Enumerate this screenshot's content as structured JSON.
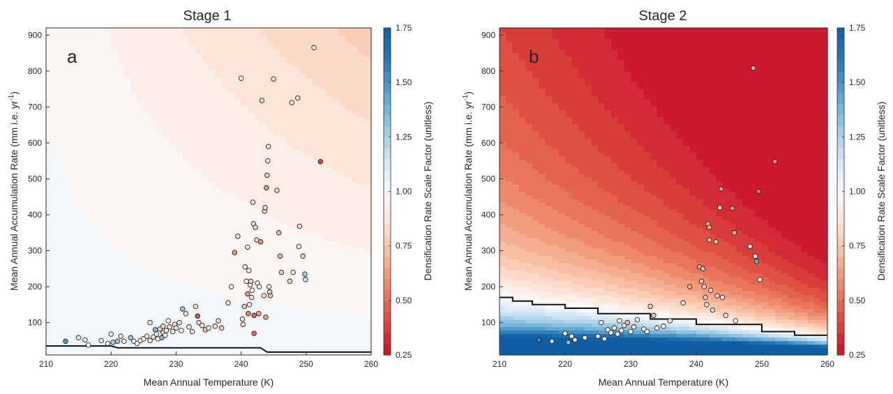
{
  "chart_data": [
    {
      "type": "heatmap",
      "panel": "a",
      "title": "Stage 1",
      "xlabel": "Mean Annual Temperature (K)",
      "ylabel": "Mean Annual Accumulation Rate (mm i.e. yr",
      "ylabel_sup": "-1",
      "ylabel_close": ")",
      "xlim": [
        210,
        260
      ],
      "ylim": [
        10,
        920
      ],
      "xticks": [
        210,
        220,
        230,
        240,
        250,
        260
      ],
      "yticks": [
        100,
        200,
        300,
        400,
        500,
        600,
        700,
        800,
        900
      ],
      "colorbar": {
        "label": "Densification Rate Scale Factor (unitless)",
        "range": [
          0.25,
          1.75
        ],
        "ticks": [
          "0.25",
          "0.50",
          "0.75",
          "1.00",
          "1.25",
          "1.50",
          "1.75"
        ]
      },
      "background_field": {
        "model": "s = 1 - k*(T-210)*(a-a0)",
        "k": 4.8e-06,
        "a0": 30
      },
      "boundary_line": {
        "x": [
          210,
          220,
          221,
          243,
          244,
          260
        ],
        "y": [
          35,
          35,
          30,
          30,
          18,
          18
        ],
        "label_value": 1.0
      },
      "points": [
        {
          "x": 213,
          "y": 48,
          "v": 1.5
        },
        {
          "x": 215,
          "y": 58,
          "v": 1.1
        },
        {
          "x": 216,
          "y": 52,
          "v": 1.05
        },
        {
          "x": 216.5,
          "y": 38,
          "v": 1.0
        },
        {
          "x": 218.5,
          "y": 50,
          "v": 0.95
        },
        {
          "x": 219.5,
          "y": 42,
          "v": 1.0
        },
        {
          "x": 220,
          "y": 68,
          "v": 0.9
        },
        {
          "x": 220.3,
          "y": 45,
          "v": 1.25
        },
        {
          "x": 221,
          "y": 48,
          "v": 1.3
        },
        {
          "x": 221.5,
          "y": 62,
          "v": 0.85
        },
        {
          "x": 222,
          "y": 48,
          "v": 1.0
        },
        {
          "x": 223,
          "y": 58,
          "v": 1.3
        },
        {
          "x": 223.5,
          "y": 48,
          "v": 0.95
        },
        {
          "x": 224,
          "y": 42,
          "v": 1.0
        },
        {
          "x": 224.5,
          "y": 50,
          "v": 0.9
        },
        {
          "x": 225,
          "y": 55,
          "v": 1.0
        },
        {
          "x": 225.5,
          "y": 62,
          "v": 0.85
        },
        {
          "x": 226,
          "y": 100,
          "v": 0.85
        },
        {
          "x": 226,
          "y": 50,
          "v": 0.95
        },
        {
          "x": 226.5,
          "y": 60,
          "v": 0.9
        },
        {
          "x": 226.8,
          "y": 80,
          "v": 1.35
        },
        {
          "x": 227,
          "y": 68,
          "v": 0.95
        },
        {
          "x": 227.2,
          "y": 55,
          "v": 1.0
        },
        {
          "x": 227.5,
          "y": 82,
          "v": 0.8
        },
        {
          "x": 227.8,
          "y": 58,
          "v": 1.35
        },
        {
          "x": 228,
          "y": 72,
          "v": 0.9
        },
        {
          "x": 228,
          "y": 90,
          "v": 0.8
        },
        {
          "x": 228.3,
          "y": 65,
          "v": 0.95
        },
        {
          "x": 228.5,
          "y": 78,
          "v": 0.9
        },
        {
          "x": 228.8,
          "y": 105,
          "v": 1.0
        },
        {
          "x": 229,
          "y": 88,
          "v": 0.85
        },
        {
          "x": 229.5,
          "y": 75,
          "v": 0.95
        },
        {
          "x": 229.8,
          "y": 95,
          "v": 0.9
        },
        {
          "x": 230,
          "y": 85,
          "v": 0.85
        },
        {
          "x": 230.5,
          "y": 100,
          "v": 0.9
        },
        {
          "x": 230.8,
          "y": 78,
          "v": 1.0
        },
        {
          "x": 231,
          "y": 138,
          "v": 1.3
        },
        {
          "x": 231.5,
          "y": 125,
          "v": 0.85
        },
        {
          "x": 232,
          "y": 88,
          "v": 0.95
        },
        {
          "x": 232.5,
          "y": 75,
          "v": 0.85
        },
        {
          "x": 233,
          "y": 145,
          "v": 0.85
        },
        {
          "x": 233.3,
          "y": 118,
          "v": 0.4
        },
        {
          "x": 233.5,
          "y": 100,
          "v": 0.8
        },
        {
          "x": 234,
          "y": 92,
          "v": 0.85
        },
        {
          "x": 234.5,
          "y": 80,
          "v": 0.75
        },
        {
          "x": 235,
          "y": 85,
          "v": 0.9
        },
        {
          "x": 236,
          "y": 90,
          "v": 0.85
        },
        {
          "x": 236.5,
          "y": 105,
          "v": 0.8
        },
        {
          "x": 237,
          "y": 85,
          "v": 0.75
        },
        {
          "x": 238,
          "y": 155,
          "v": 0.85
        },
        {
          "x": 238.5,
          "y": 200,
          "v": 0.9
        },
        {
          "x": 239,
          "y": 295,
          "v": 0.6
        },
        {
          "x": 239.5,
          "y": 340,
          "v": 1.15
        },
        {
          "x": 240,
          "y": 780,
          "v": 1.0
        },
        {
          "x": 240.2,
          "y": 110,
          "v": 0.85
        },
        {
          "x": 240.3,
          "y": 95,
          "v": 0.9
        },
        {
          "x": 240.5,
          "y": 145,
          "v": 0.75
        },
        {
          "x": 240.6,
          "y": 255,
          "v": 0.85
        },
        {
          "x": 240.8,
          "y": 215,
          "v": 1.0
        },
        {
          "x": 241,
          "y": 310,
          "v": 1.05
        },
        {
          "x": 241,
          "y": 180,
          "v": 0.6
        },
        {
          "x": 241.1,
          "y": 125,
          "v": 0.55
        },
        {
          "x": 241.2,
          "y": 245,
          "v": 0.95
        },
        {
          "x": 241.3,
          "y": 150,
          "v": 0.95
        },
        {
          "x": 241.4,
          "y": 205,
          "v": 0.85
        },
        {
          "x": 241.5,
          "y": 215,
          "v": 0.8
        },
        {
          "x": 241.6,
          "y": 170,
          "v": 0.9
        },
        {
          "x": 241.7,
          "y": 190,
          "v": 0.95
        },
        {
          "x": 241.8,
          "y": 435,
          "v": 0.85
        },
        {
          "x": 241.9,
          "y": 375,
          "v": 0.85
        },
        {
          "x": 242,
          "y": 120,
          "v": 0.5
        },
        {
          "x": 242,
          "y": 70,
          "v": 0.5
        },
        {
          "x": 242.2,
          "y": 365,
          "v": 0.8
        },
        {
          "x": 242.4,
          "y": 330,
          "v": 0.8
        },
        {
          "x": 242.5,
          "y": 210,
          "v": 0.95
        },
        {
          "x": 242.7,
          "y": 125,
          "v": 0.65
        },
        {
          "x": 242.8,
          "y": 200,
          "v": 0.95
        },
        {
          "x": 243,
          "y": 325,
          "v": 0.6
        },
        {
          "x": 243.2,
          "y": 718,
          "v": 0.8
        },
        {
          "x": 243.5,
          "y": 175,
          "v": 0.85
        },
        {
          "x": 243.6,
          "y": 410,
          "v": 0.8
        },
        {
          "x": 243.7,
          "y": 420,
          "v": 0.8
        },
        {
          "x": 243.8,
          "y": 115,
          "v": 0.65
        },
        {
          "x": 243.9,
          "y": 475,
          "v": 0.6
        },
        {
          "x": 244,
          "y": 510,
          "v": 0.75
        },
        {
          "x": 244.1,
          "y": 550,
          "v": 0.85
        },
        {
          "x": 244.2,
          "y": 590,
          "v": 0.85
        },
        {
          "x": 244.3,
          "y": 200,
          "v": 0.9
        },
        {
          "x": 244.4,
          "y": 185,
          "v": 0.8
        },
        {
          "x": 244.5,
          "y": 175,
          "v": 0.7
        },
        {
          "x": 245,
          "y": 778,
          "v": 0.85
        },
        {
          "x": 245.5,
          "y": 468,
          "v": 0.8
        },
        {
          "x": 245.8,
          "y": 350,
          "v": 0.7
        },
        {
          "x": 246,
          "y": 285,
          "v": 0.7
        },
        {
          "x": 246.2,
          "y": 240,
          "v": 0.75
        },
        {
          "x": 247.5,
          "y": 215,
          "v": 0.8
        },
        {
          "x": 247.8,
          "y": 712,
          "v": 0.85
        },
        {
          "x": 248,
          "y": 240,
          "v": 0.85
        },
        {
          "x": 248.7,
          "y": 725,
          "v": 0.85
        },
        {
          "x": 248.9,
          "y": 312,
          "v": 0.9
        },
        {
          "x": 249,
          "y": 368,
          "v": 0.85
        },
        {
          "x": 249.5,
          "y": 285,
          "v": 0.75
        },
        {
          "x": 249.8,
          "y": 235,
          "v": 1.25
        },
        {
          "x": 249.9,
          "y": 220,
          "v": 1.15
        },
        {
          "x": 251.2,
          "y": 865,
          "v": 0.9
        },
        {
          "x": 252.2,
          "y": 548,
          "v": 0.4
        }
      ]
    },
    {
      "type": "heatmap",
      "panel": "b",
      "title": "Stage 2",
      "xlabel": "Mean Annual Temperature (K)",
      "ylabel": "Mean Annual Accumulation Rate (mm i.e. yr",
      "ylabel_sup": "-1",
      "ylabel_close": ")",
      "xlim": [
        210,
        260
      ],
      "ylim": [
        10,
        920
      ],
      "xticks": [
        210,
        220,
        230,
        240,
        250,
        260
      ],
      "yticks": [
        100,
        200,
        300,
        400,
        500,
        600,
        700,
        800,
        900
      ],
      "colorbar": {
        "label": "Densification Rate Scale Factor (unitless)",
        "range": [
          0.25,
          1.75
        ],
        "ticks": [
          "0.25",
          "0.50",
          "0.75",
          "1.00",
          "1.25",
          "1.50",
          "1.75"
        ]
      },
      "background_field": {
        "model": "s = 10^(-c*log10(a/a0)*(1+d*(T-210)))",
        "c": 0.57,
        "d": 0.011,
        "a0_at_210": 165,
        "a0_at_260": 60
      },
      "boundary_line": {
        "x": [
          210,
          212,
          212,
          215,
          215,
          220,
          220,
          225,
          225,
          233,
          233,
          240,
          240,
          250,
          250,
          255,
          255,
          260
        ],
        "y": [
          170,
          170,
          160,
          160,
          150,
          150,
          140,
          140,
          125,
          125,
          110,
          110,
          95,
          95,
          75,
          75,
          65,
          65
        ],
        "label_value": 1.0
      },
      "points": [
        {
          "x": 216,
          "y": 52,
          "v": 1.55
        },
        {
          "x": 218,
          "y": 48,
          "v": 1.2
        },
        {
          "x": 220,
          "y": 70,
          "v": 1.0
        },
        {
          "x": 220.5,
          "y": 45,
          "v": 1.35
        },
        {
          "x": 221,
          "y": 62,
          "v": 1.05
        },
        {
          "x": 221.5,
          "y": 52,
          "v": 1.1
        },
        {
          "x": 223,
          "y": 58,
          "v": 1.0
        },
        {
          "x": 225,
          "y": 62,
          "v": 0.95
        },
        {
          "x": 225.5,
          "y": 100,
          "v": 1.0
        },
        {
          "x": 226,
          "y": 55,
          "v": 1.1
        },
        {
          "x": 226.5,
          "y": 80,
          "v": 0.95
        },
        {
          "x": 227,
          "y": 72,
          "v": 1.0
        },
        {
          "x": 227.5,
          "y": 85,
          "v": 0.9
        },
        {
          "x": 228,
          "y": 68,
          "v": 1.0
        },
        {
          "x": 228.3,
          "y": 105,
          "v": 0.95
        },
        {
          "x": 228.6,
          "y": 78,
          "v": 1.0
        },
        {
          "x": 229,
          "y": 92,
          "v": 0.85
        },
        {
          "x": 229.5,
          "y": 100,
          "v": 0.7
        },
        {
          "x": 230,
          "y": 75,
          "v": 1.0
        },
        {
          "x": 230.5,
          "y": 88,
          "v": 0.9
        },
        {
          "x": 231,
          "y": 108,
          "v": 0.95
        },
        {
          "x": 232,
          "y": 82,
          "v": 1.0
        },
        {
          "x": 232.5,
          "y": 75,
          "v": 1.0
        },
        {
          "x": 233,
          "y": 145,
          "v": 0.75
        },
        {
          "x": 233.5,
          "y": 120,
          "v": 0.75
        },
        {
          "x": 234,
          "y": 85,
          "v": 0.95
        },
        {
          "x": 235,
          "y": 90,
          "v": 1.0
        },
        {
          "x": 236,
          "y": 105,
          "v": 0.9
        },
        {
          "x": 238,
          "y": 155,
          "v": 0.9
        },
        {
          "x": 239,
          "y": 200,
          "v": 0.65
        },
        {
          "x": 240.5,
          "y": 255,
          "v": 0.65
        },
        {
          "x": 240.8,
          "y": 215,
          "v": 0.75
        },
        {
          "x": 241,
          "y": 250,
          "v": 0.7
        },
        {
          "x": 241.2,
          "y": 200,
          "v": 0.8
        },
        {
          "x": 241.4,
          "y": 170,
          "v": 0.75
        },
        {
          "x": 241.6,
          "y": 150,
          "v": 0.85
        },
        {
          "x": 241.8,
          "y": 375,
          "v": 0.7
        },
        {
          "x": 242,
          "y": 365,
          "v": 0.65
        },
        {
          "x": 242,
          "y": 330,
          "v": 0.7
        },
        {
          "x": 242.2,
          "y": 190,
          "v": 0.8
        },
        {
          "x": 242.5,
          "y": 135,
          "v": 0.8
        },
        {
          "x": 243,
          "y": 325,
          "v": 0.7
        },
        {
          "x": 243.2,
          "y": 175,
          "v": 0.8
        },
        {
          "x": 243.6,
          "y": 420,
          "v": 0.8
        },
        {
          "x": 243.8,
          "y": 472,
          "v": 0.6
        },
        {
          "x": 244,
          "y": 170,
          "v": 0.85
        },
        {
          "x": 244.5,
          "y": 120,
          "v": 0.9
        },
        {
          "x": 245.5,
          "y": 418,
          "v": 0.6
        },
        {
          "x": 245.8,
          "y": 350,
          "v": 0.7
        },
        {
          "x": 246,
          "y": 105,
          "v": 0.95
        },
        {
          "x": 248.2,
          "y": 312,
          "v": 0.9
        },
        {
          "x": 248.7,
          "y": 808,
          "v": 0.65
        },
        {
          "x": 249,
          "y": 285,
          "v": 1.0
        },
        {
          "x": 249.2,
          "y": 270,
          "v": 1.4
        },
        {
          "x": 249.5,
          "y": 465,
          "v": 0.5
        },
        {
          "x": 249.7,
          "y": 220,
          "v": 1.0
        },
        {
          "x": 252,
          "y": 548,
          "v": 0.55
        }
      ]
    }
  ]
}
